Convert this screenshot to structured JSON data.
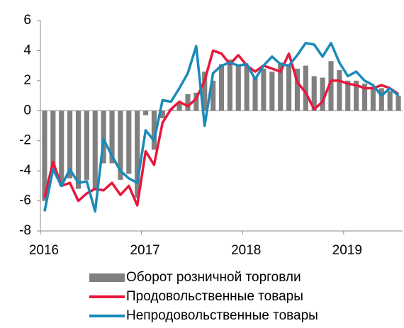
{
  "chart_data": {
    "type": "bar_line",
    "categories": [
      "2016",
      null,
      null,
      null,
      null,
      null,
      null,
      null,
      null,
      null,
      null,
      null,
      "2017",
      null,
      null,
      null,
      null,
      null,
      null,
      null,
      null,
      null,
      null,
      null,
      "2018",
      null,
      null,
      null,
      null,
      null,
      null,
      null,
      null,
      null,
      null,
      null,
      "2019",
      null,
      null,
      null,
      null,
      null,
      null
    ],
    "series": [
      {
        "name": "Оборот розничной торговли",
        "type": "bar",
        "color": "#808080",
        "values": [
          -6.0,
          -4.0,
          -5.0,
          -4.5,
          -5.2,
          -4.6,
          -5.3,
          -3.5,
          -3.5,
          -4.6,
          -4.2,
          -5.8,
          -0.3,
          -2.6,
          -0.5,
          0.1,
          0.5,
          1.1,
          1.2,
          2.6,
          2.0,
          3.1,
          3.4,
          3.1,
          3.0,
          2.2,
          2.8,
          2.6,
          3.2,
          3.0,
          2.8,
          3.0,
          2.3,
          2.2,
          3.3,
          2.7,
          2.0,
          2.0,
          1.8,
          1.6,
          1.5,
          1.3,
          1.0
        ]
      },
      {
        "name": "Продовольственные товары",
        "type": "line",
        "color": "#e8173c",
        "values": [
          -5.8,
          -3.4,
          -5.0,
          -4.8,
          -6.0,
          -5.5,
          -5.2,
          -5.3,
          -4.8,
          -5.6,
          -5.0,
          -6.3,
          -2.7,
          -3.6,
          -0.8,
          0.1,
          0.6,
          0.3,
          0.8,
          2.0,
          4.0,
          3.8,
          3.1,
          3.7,
          3.0,
          2.6,
          3.0,
          2.8,
          2.6,
          3.8,
          1.9,
          1.2,
          0.1,
          0.6,
          2.0,
          2.0,
          1.8,
          1.7,
          1.5,
          1.5,
          1.7,
          1.5,
          1.1
        ]
      },
      {
        "name": "Непродовольственные товары",
        "type": "line",
        "color": "#1a8ab8",
        "values": [
          -6.7,
          -3.9,
          -5.0,
          -3.9,
          -4.8,
          -4.7,
          -6.7,
          -1.9,
          -3.0,
          -4.0,
          -4.5,
          -4.8,
          -1.3,
          -2.0,
          0.7,
          0.6,
          1.5,
          2.5,
          4.3,
          -1.0,
          2.5,
          3.0,
          3.2,
          3.0,
          3.1,
          2.1,
          3.0,
          3.6,
          3.1,
          3.0,
          3.7,
          4.5,
          4.4,
          3.6,
          4.5,
          3.2,
          2.3,
          2.6,
          2.0,
          1.7,
          1.0,
          1.5,
          1.0
        ]
      }
    ],
    "ylim": [
      -8,
      6
    ],
    "yticks": [
      -8,
      -6,
      -4,
      -2,
      0,
      2,
      4,
      6
    ]
  }
}
